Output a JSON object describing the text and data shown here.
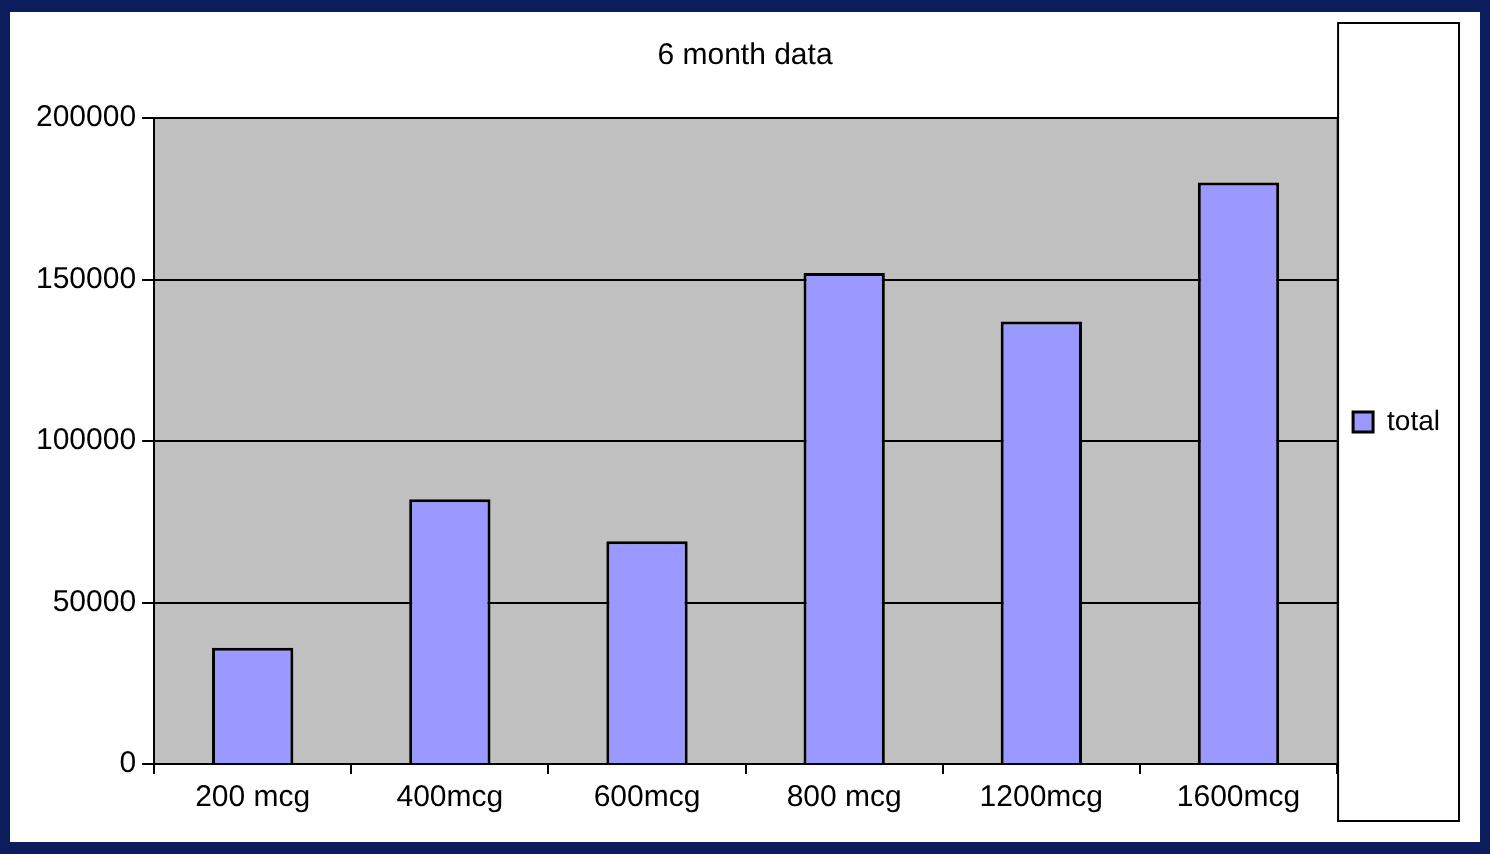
{
  "chart_data": {
    "type": "bar",
    "title": "6 month data",
    "categories": [
      "200 mcg",
      "400mcg",
      "600mcg",
      "800 mcg",
      "1200mcg",
      "1600mcg"
    ],
    "series": [
      {
        "name": "total",
        "color": "#9999ff",
        "values": [
          36000,
          82000,
          69000,
          152000,
          137000,
          180000
        ]
      }
    ],
    "ylim": [
      0,
      200000
    ],
    "yticks": [
      0,
      50000,
      100000,
      150000,
      200000
    ],
    "grid": "y",
    "legend": "right"
  }
}
